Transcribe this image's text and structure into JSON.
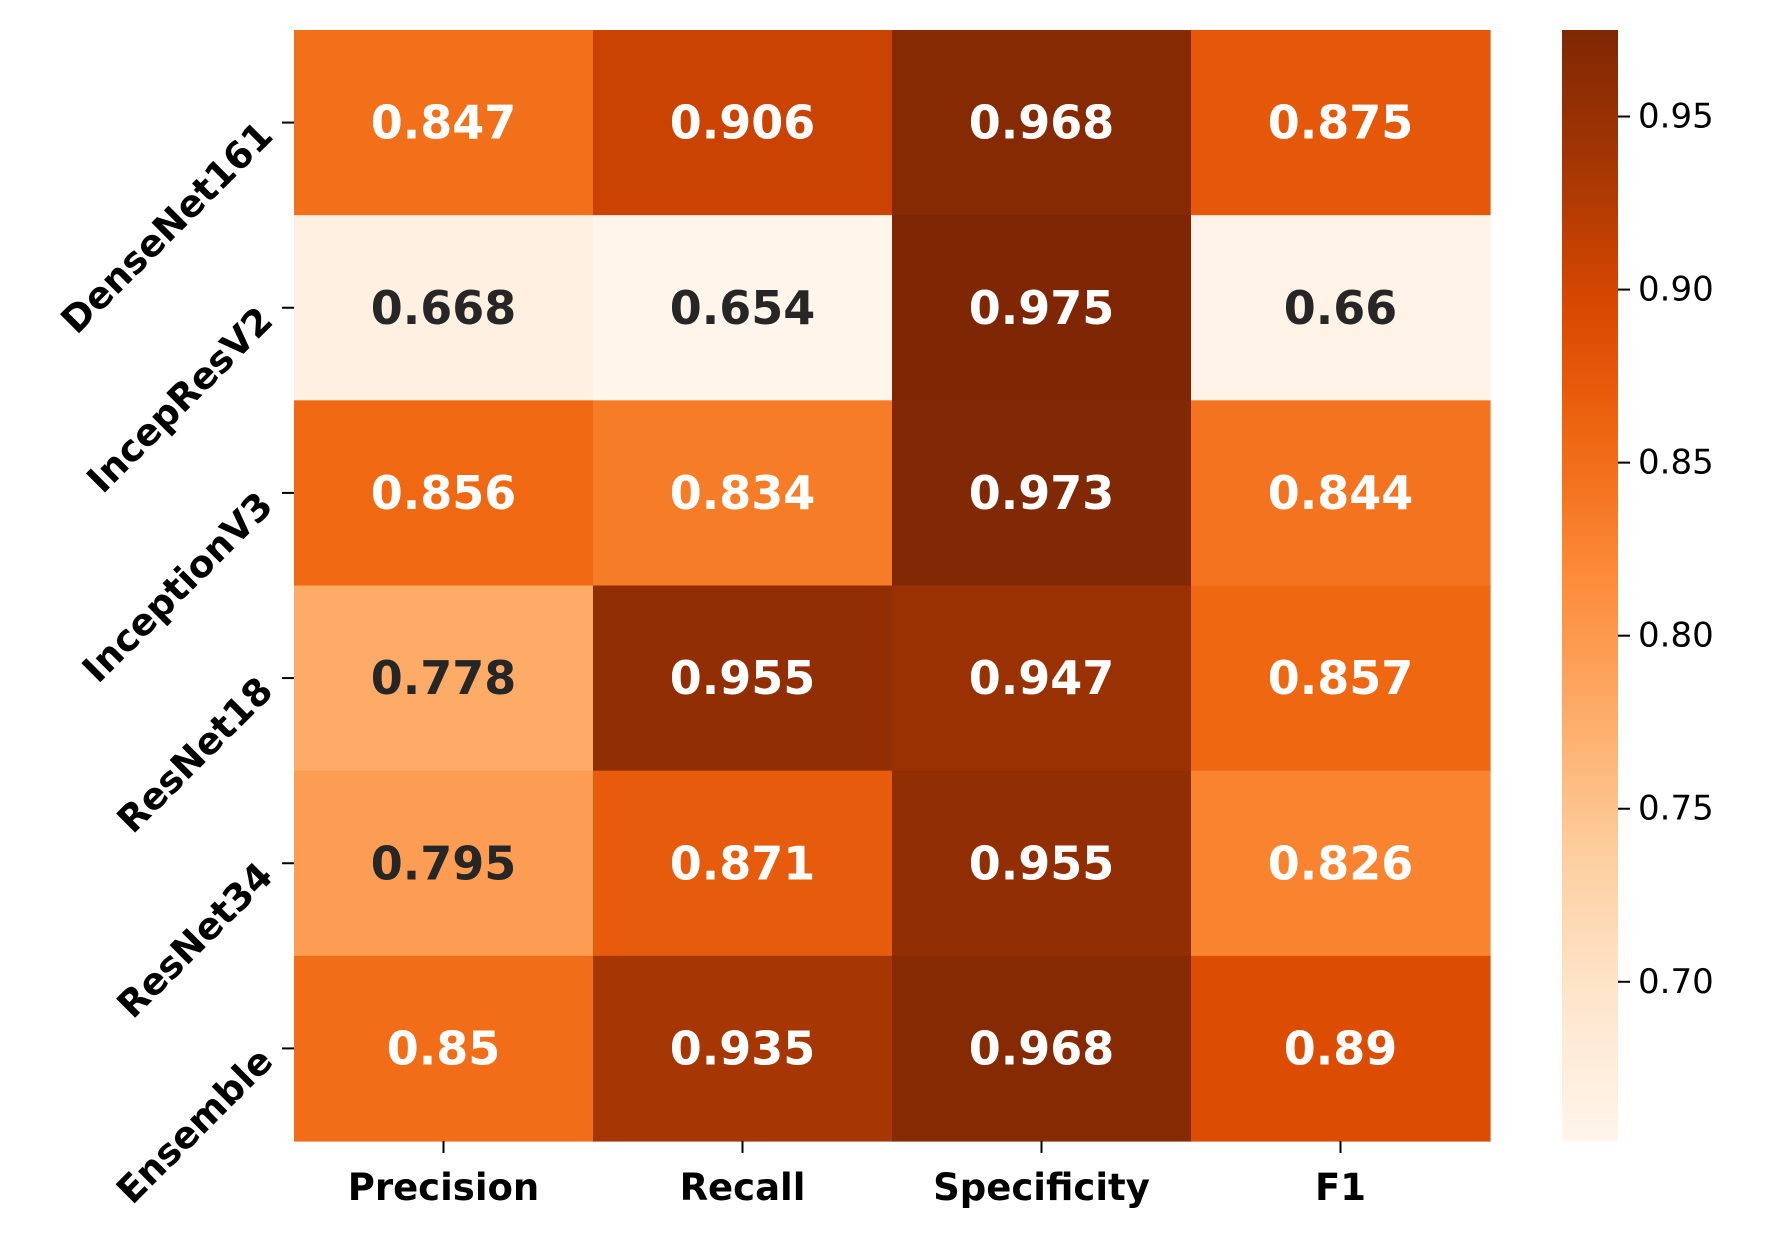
{
  "chart_data": {
    "type": "heatmap",
    "title": "",
    "xlabel": "",
    "ylabel": "",
    "columns": [
      "Precision",
      "Recall",
      "Specificity",
      "F1"
    ],
    "rows": [
      "DenseNet161",
      "IncepResV2",
      "InceptionV3",
      "ResNet18",
      "ResNet34",
      "Ensemble"
    ],
    "values": [
      [
        0.847,
        0.906,
        0.968,
        0.875
      ],
      [
        0.668,
        0.654,
        0.975,
        0.66
      ],
      [
        0.856,
        0.834,
        0.973,
        0.844
      ],
      [
        0.778,
        0.955,
        0.947,
        0.857
      ],
      [
        0.795,
        0.871,
        0.955,
        0.826
      ],
      [
        0.85,
        0.935,
        0.968,
        0.89
      ]
    ],
    "labels": [
      [
        "0.847",
        "0.906",
        "0.968",
        "0.875"
      ],
      [
        "0.668",
        "0.654",
        "0.975",
        "0.66"
      ],
      [
        "0.856",
        "0.834",
        "0.973",
        "0.844"
      ],
      [
        "0.778",
        "0.955",
        "0.947",
        "0.857"
      ],
      [
        "0.795",
        "0.871",
        "0.955",
        "0.826"
      ],
      [
        "0.85",
        "0.935",
        "0.968",
        "0.89"
      ]
    ],
    "colormap": "Oranges",
    "color_range": [
      0.654,
      0.975
    ],
    "colorbar": {
      "ticks": [
        0.7,
        0.75,
        0.8,
        0.85,
        0.9,
        0.95
      ],
      "tick_labels": [
        "0.70",
        "0.75",
        "0.80",
        "0.85",
        "0.90",
        "0.95"
      ],
      "placement": "right"
    },
    "annotation_dark_color": "#262626",
    "annotation_light_color": "#ffffff",
    "grid": false
  }
}
